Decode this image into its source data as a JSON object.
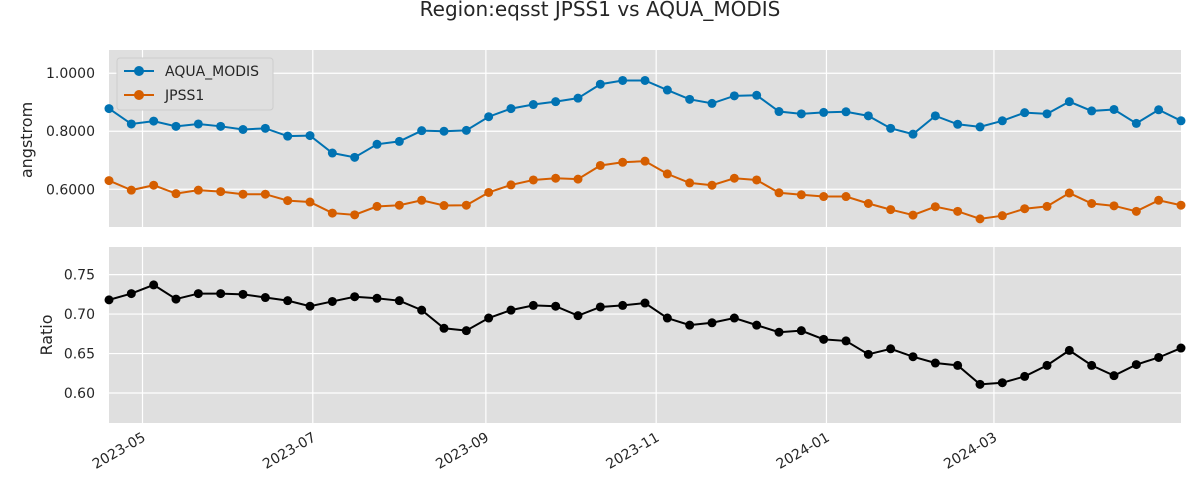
{
  "title": "Region:eqsst JPSS1 vs AQUA_MODIS",
  "colors": {
    "aqua": "#0072b2",
    "jpss1": "#d55e00",
    "ratio": "#000000",
    "panel_bg": "#dfdfdf",
    "grid": "#ffffff"
  },
  "chart_data": [
    {
      "type": "line",
      "ylabel": "angstrom",
      "ylim": [
        0.47,
        1.08
      ],
      "yticks": [
        0.6,
        0.8,
        1.0
      ],
      "ytick_labels": [
        "0.6000",
        "0.8000",
        "1.0000"
      ],
      "grid": true,
      "legend": "top-left",
      "x": [
        "2023-04-19",
        "2023-04-27",
        "2023-05-05",
        "2023-05-13",
        "2023-05-21",
        "2023-05-29",
        "2023-06-06",
        "2023-06-14",
        "2023-06-22",
        "2023-06-30",
        "2023-07-08",
        "2023-07-16",
        "2023-07-24",
        "2023-08-01",
        "2023-08-09",
        "2023-08-17",
        "2023-08-25",
        "2023-09-02",
        "2023-09-10",
        "2023-09-18",
        "2023-09-26",
        "2023-10-04",
        "2023-10-12",
        "2023-10-20",
        "2023-10-28",
        "2023-11-05",
        "2023-11-13",
        "2023-11-21",
        "2023-11-29",
        "2023-12-07",
        "2023-12-15",
        "2023-12-23",
        "2023-12-31",
        "2024-01-08",
        "2024-01-16",
        "2024-01-24",
        "2024-02-01",
        "2024-02-09",
        "2024-02-17",
        "2024-02-25",
        "2024-03-04",
        "2024-03-12",
        "2024-03-20",
        "2024-03-28",
        "2024-04-05",
        "2024-04-13",
        "2024-04-21",
        "2024-04-29",
        "2024-05-07"
      ],
      "series": [
        {
          "name": "AQUA_MODIS",
          "values": [
            0.878,
            0.825,
            0.835,
            0.817,
            0.825,
            0.817,
            0.806,
            0.81,
            0.783,
            0.785,
            0.725,
            0.71,
            0.755,
            0.765,
            0.802,
            0.8,
            0.803,
            0.85,
            0.878,
            0.892,
            0.902,
            0.914,
            0.962,
            0.975,
            0.975,
            0.942,
            0.91,
            0.896,
            0.922,
            0.924,
            0.868,
            0.86,
            0.865,
            0.867,
            0.853,
            0.81,
            0.79,
            0.853,
            0.824,
            0.815,
            0.836,
            0.864,
            0.86,
            0.902,
            0.87,
            0.875,
            0.827,
            0.874,
            0.836
          ]
        },
        {
          "name": "JPSS1",
          "values": [
            0.63,
            0.597,
            0.614,
            0.585,
            0.597,
            0.592,
            0.583,
            0.583,
            0.561,
            0.556,
            0.518,
            0.512,
            0.541,
            0.545,
            0.562,
            0.544,
            0.545,
            0.589,
            0.615,
            0.632,
            0.638,
            0.635,
            0.682,
            0.693,
            0.697,
            0.653,
            0.622,
            0.614,
            0.638,
            0.632,
            0.588,
            0.581,
            0.575,
            0.575,
            0.551,
            0.53,
            0.511,
            0.54,
            0.524,
            0.498,
            0.509,
            0.533,
            0.541,
            0.587,
            0.551,
            0.543,
            0.524,
            0.562,
            0.545
          ]
        }
      ]
    },
    {
      "type": "line",
      "ylabel": "Ratio",
      "ylim": [
        0.562,
        0.785
      ],
      "yticks": [
        0.6,
        0.65,
        0.7,
        0.75
      ],
      "ytick_labels": [
        "0.60",
        "0.65",
        "0.70",
        "0.75"
      ],
      "grid": true,
      "xtick_labels": [
        "2023-05",
        "2023-07",
        "2023-09",
        "2023-11",
        "2024-01",
        "2024-03"
      ],
      "xticks": [
        "2023-05-01",
        "2023-07-01",
        "2023-09-01",
        "2023-11-01",
        "2024-01-01",
        "2024-03-01"
      ],
      "series": [
        {
          "values": [
            0.718,
            0.726,
            0.737,
            0.719,
            0.726,
            0.726,
            0.725,
            0.721,
            0.717,
            0.71,
            0.716,
            0.722,
            0.72,
            0.717,
            0.705,
            0.682,
            0.679,
            0.695,
            0.705,
            0.711,
            0.71,
            0.698,
            0.709,
            0.711,
            0.714,
            0.695,
            0.686,
            0.689,
            0.695,
            0.686,
            0.677,
            0.679,
            0.668,
            0.666,
            0.649,
            0.656,
            0.646,
            0.638,
            0.635,
            0.611,
            0.613,
            0.621,
            0.635,
            0.654,
            0.635,
            0.622,
            0.636,
            0.645,
            0.657
          ]
        }
      ]
    }
  ]
}
